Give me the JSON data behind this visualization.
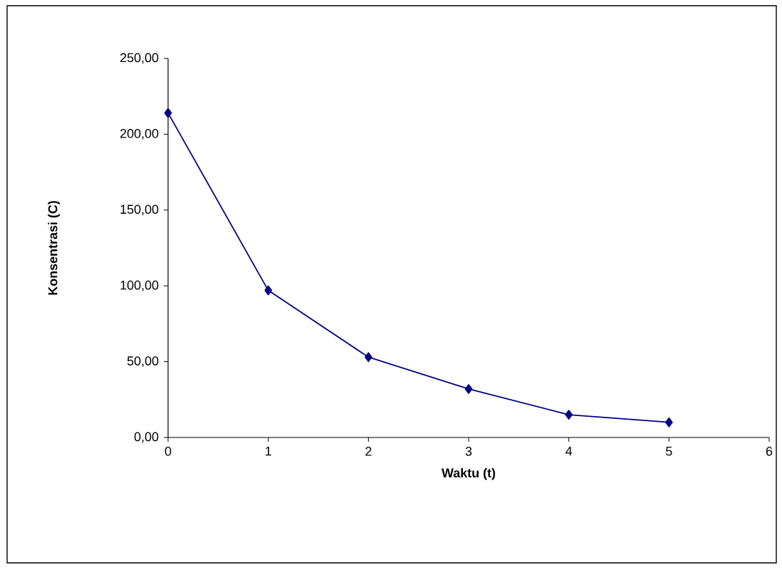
{
  "chart_data": {
    "type": "line",
    "xlabel": "Waktu (t)",
    "ylabel": "Konsentrasi (C)",
    "x": [
      0,
      1,
      2,
      3,
      4,
      5
    ],
    "series": [
      {
        "color": "#000080",
        "values": [
          214,
          97,
          53,
          32,
          15,
          10
        ]
      }
    ],
    "xlim": [
      0,
      6
    ],
    "xticks": [
      0,
      1,
      2,
      3,
      4,
      5,
      6
    ],
    "ylim": [
      0,
      250
    ],
    "yticks": [
      {
        "value": 0,
        "label": "0,00"
      },
      {
        "value": 50,
        "label": "50,00"
      },
      {
        "value": 100,
        "label": "100,00"
      },
      {
        "value": 150,
        "label": "150,00"
      },
      {
        "value": 200,
        "label": "200,00"
      },
      {
        "value": 250,
        "label": "250,00"
      }
    ],
    "grid": false,
    "marker": "diamond",
    "line_style": "solid"
  }
}
